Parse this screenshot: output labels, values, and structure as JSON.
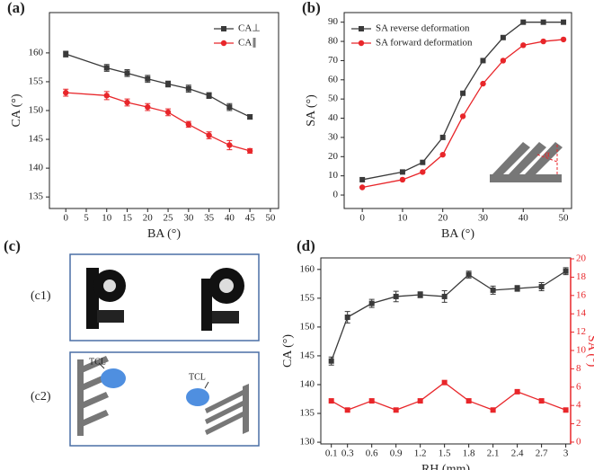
{
  "chart_data": [
    {
      "type": "line",
      "label": "(a)",
      "xlabel": "BA (°)",
      "ylabel": "CA (°)",
      "xlim": [
        -4,
        52
      ],
      "xticks": [
        0,
        5,
        10,
        15,
        20,
        25,
        30,
        35,
        40,
        45,
        50
      ],
      "ylim": [
        133,
        167
      ],
      "yticks": [
        135,
        140,
        145,
        150,
        155,
        160
      ],
      "legend": "upper right",
      "series": [
        {
          "name": "CA⊥",
          "color": "#3a3a3a",
          "marker": "square",
          "x": [
            0,
            10,
            15,
            20,
            25,
            30,
            35,
            40,
            45
          ],
          "values": [
            159.8,
            157.4,
            156.5,
            155.5,
            154.6,
            153.8,
            152.6,
            150.6,
            148.9
          ],
          "errors": [
            0.5,
            0.6,
            0.6,
            0.6,
            0.5,
            0.6,
            0.5,
            0.6,
            0.4
          ]
        },
        {
          "name": "CA∥",
          "color": "#e8262a",
          "marker": "circle",
          "x": [
            0,
            10,
            15,
            20,
            25,
            30,
            35,
            40,
            45
          ],
          "values": [
            153.1,
            152.6,
            151.4,
            150.6,
            149.7,
            147.6,
            145.7,
            144.0,
            143.0
          ],
          "errors": [
            0.6,
            0.7,
            0.6,
            0.6,
            0.6,
            0.5,
            0.6,
            0.8,
            0.4
          ]
        }
      ]
    },
    {
      "type": "line",
      "label": "(b)",
      "xlabel": "BA (°)",
      "ylabel": "SA (°)",
      "annotation": "α",
      "xlim": [
        -4.5,
        52
      ],
      "xticks": [
        0,
        10,
        20,
        30,
        40,
        50
      ],
      "ylim": [
        -7,
        95
      ],
      "yticks": [
        0,
        10,
        20,
        30,
        40,
        50,
        60,
        70,
        80,
        90
      ],
      "legend": "upper left",
      "series": [
        {
          "name": "SA reverse deformation",
          "color": "#3a3a3a",
          "marker": "square",
          "x": [
            0,
            10,
            15,
            20,
            25,
            30,
            35,
            40,
            45,
            50
          ],
          "values": [
            8,
            12,
            17,
            30,
            53,
            70,
            82,
            90,
            90,
            90
          ]
        },
        {
          "name": "SA forward deformation",
          "color": "#e8262a",
          "marker": "circle",
          "x": [
            0,
            10,
            15,
            20,
            25,
            30,
            35,
            40,
            45,
            50
          ],
          "values": [
            4,
            8,
            12,
            21,
            41,
            58,
            70,
            78,
            80,
            81
          ]
        }
      ]
    },
    {
      "type": "line",
      "label": "(d)",
      "xlabel": "RH (mm)",
      "ylabel": "CA (°)",
      "y2label": "SA (°)",
      "y2color": "#e8262a",
      "xlim": [
        -0.03,
        3.06
      ],
      "xticks": [
        0.1,
        0.3,
        0.6,
        0.9,
        1.2,
        1.5,
        1.8,
        2.1,
        2.4,
        2.7,
        3
      ],
      "ylim": [
        129.7,
        162
      ],
      "yticks": [
        130,
        135,
        140,
        145,
        150,
        155,
        160
      ],
      "y2lim": [
        -0.2,
        20.1
      ],
      "y2ticks": [
        0,
        2,
        4,
        6,
        8,
        10,
        12,
        14,
        16,
        18,
        20
      ],
      "series": [
        {
          "color": "#3a3a3a",
          "marker": "square",
          "x": [
            0.1,
            0.3,
            0.6,
            0.9,
            1.2,
            1.5,
            1.8,
            2.1,
            2.4,
            2.7,
            3
          ],
          "values": [
            144.1,
            151.7,
            154.1,
            155.3,
            155.6,
            155.3,
            159.1,
            156.4,
            156.7,
            157.0,
            159.7
          ],
          "errors": [
            0.7,
            1.0,
            0.7,
            0.9,
            0.5,
            1.0,
            0.6,
            0.7,
            0.5,
            0.7,
            0.6
          ]
        },
        {
          "color": "#e8262a",
          "marker": "square",
          "axis": "y2",
          "x": [
            0.1,
            0.3,
            0.6,
            0.9,
            1.2,
            1.5,
            1.8,
            2.1,
            2.4,
            2.7,
            3
          ],
          "values": [
            4.5,
            3.5,
            4.5,
            3.5,
            4.5,
            6.5,
            4.5,
            3.5,
            5.5,
            4.5,
            3.5
          ]
        }
      ]
    }
  ],
  "schematic": {
    "label": "(c)",
    "rows": [
      {
        "label": "(c1)"
      },
      {
        "label": "(c2)",
        "annotations": [
          "TCL",
          "TCL"
        ]
      }
    ]
  }
}
